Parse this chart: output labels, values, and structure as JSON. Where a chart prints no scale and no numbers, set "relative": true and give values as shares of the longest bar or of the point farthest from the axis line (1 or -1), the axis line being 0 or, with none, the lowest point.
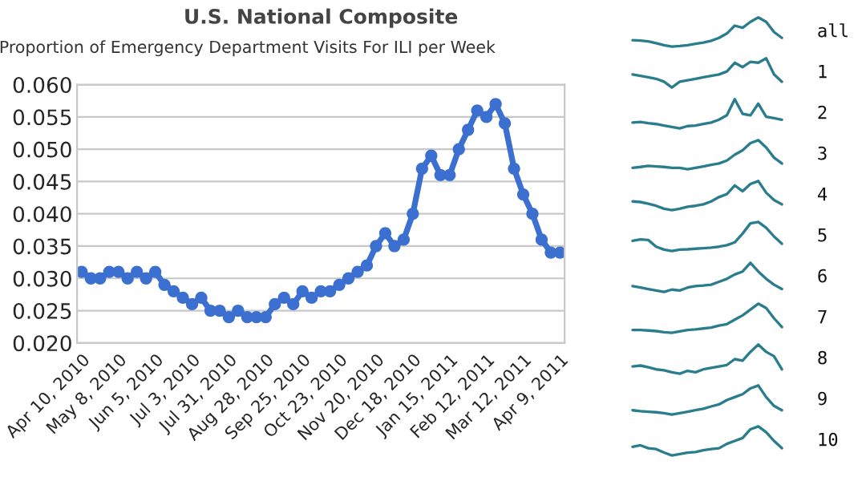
{
  "chart_data": [
    {
      "type": "line",
      "title": "U.S. National Composite",
      "subtitle": "Proportion of Emergency Department Visits For ILI per Week",
      "categories": [
        "Apr 10, 2010",
        null,
        null,
        null,
        "May 8, 2010",
        null,
        null,
        null,
        "Jun 5, 2010",
        null,
        null,
        null,
        "Jul 3, 2010",
        null,
        null,
        null,
        "Jul 31, 2010",
        null,
        null,
        null,
        "Aug 28, 2010",
        null,
        null,
        null,
        "Sep 25, 2010",
        null,
        null,
        null,
        "Oct 23, 2010",
        null,
        null,
        null,
        "Nov 20, 2010",
        null,
        null,
        null,
        "Dec 18, 2010",
        null,
        null,
        null,
        "Jan 15, 2011",
        null,
        null,
        null,
        "Feb 12, 2011",
        null,
        null,
        null,
        "Mar 12, 2011",
        null,
        null,
        null,
        "Apr 9, 2011"
      ],
      "values": [
        0.031,
        0.03,
        0.03,
        0.031,
        0.031,
        0.03,
        0.031,
        0.03,
        0.031,
        0.029,
        0.028,
        0.027,
        0.026,
        0.027,
        0.025,
        0.025,
        0.024,
        0.025,
        0.024,
        0.024,
        0.024,
        0.026,
        0.027,
        0.026,
        0.028,
        0.027,
        0.028,
        0.028,
        0.029,
        0.03,
        0.031,
        0.032,
        0.035,
        0.037,
        0.035,
        0.036,
        0.04,
        0.047,
        0.049,
        0.046,
        0.046,
        0.05,
        0.053,
        0.056,
        0.055,
        0.057,
        0.054,
        0.047,
        0.043,
        0.04,
        0.036,
        0.034,
        0.034
      ],
      "color": "#3b6fd0",
      "marker": "circle",
      "grid": "y",
      "ylim": [
        0.02,
        0.06
      ],
      "yticks": [
        {
          "value": 0.02,
          "label": "0.020"
        },
        {
          "value": 0.025,
          "label": "0.025"
        },
        {
          "value": 0.03,
          "label": "0.030"
        },
        {
          "value": 0.035,
          "label": "0.035"
        },
        {
          "value": 0.04,
          "label": "0.040"
        },
        {
          "value": 0.045,
          "label": "0.045"
        },
        {
          "value": 0.05,
          "label": "0.050"
        },
        {
          "value": 0.055,
          "label": "0.055"
        },
        {
          "value": 0.06,
          "label": "0.060"
        }
      ]
    },
    {
      "type": "line",
      "ylabel": "all",
      "relative": true,
      "color": "#2a7d8c",
      "categories": [
        null,
        null,
        null,
        null,
        null,
        null,
        null,
        null,
        null,
        null,
        null,
        null,
        null,
        null,
        null,
        null,
        null,
        null,
        null,
        null
      ],
      "values": [
        0.22,
        0.21,
        0.18,
        0.12,
        0.05,
        0.0,
        0.02,
        0.05,
        0.1,
        0.14,
        0.2,
        0.3,
        0.45,
        0.72,
        0.65,
        0.85,
        1.0,
        0.85,
        0.5,
        0.3
      ]
    },
    {
      "type": "line",
      "ylabel": "1",
      "relative": true,
      "color": "#2a7d8c",
      "categories": [
        null,
        null,
        null,
        null,
        null,
        null,
        null,
        null,
        null,
        null,
        null,
        null,
        null,
        null,
        null,
        null,
        null,
        null,
        null,
        null
      ],
      "values": [
        0.45,
        0.4,
        0.35,
        0.3,
        0.2,
        0.0,
        0.2,
        0.25,
        0.3,
        0.35,
        0.4,
        0.45,
        0.55,
        0.85,
        0.7,
        0.88,
        0.85,
        1.0,
        0.45,
        0.2
      ]
    },
    {
      "type": "line",
      "ylabel": "2",
      "relative": true,
      "color": "#2a7d8c",
      "categories": [
        null,
        null,
        null,
        null,
        null,
        null,
        null,
        null,
        null,
        null,
        null,
        null,
        null,
        null,
        null,
        null,
        null,
        null,
        null,
        null
      ],
      "values": [
        0.2,
        0.22,
        0.18,
        0.15,
        0.1,
        0.05,
        0.0,
        0.08,
        0.1,
        0.15,
        0.2,
        0.3,
        0.45,
        1.0,
        0.5,
        0.45,
        0.85,
        0.4,
        0.35,
        0.3
      ]
    },
    {
      "type": "line",
      "ylabel": "3",
      "relative": true,
      "color": "#2a7d8c",
      "categories": [
        null,
        null,
        null,
        null,
        null,
        null,
        null,
        null,
        null,
        null,
        null,
        null,
        null,
        null,
        null,
        null,
        null,
        null,
        null,
        null
      ],
      "values": [
        0.05,
        0.08,
        0.12,
        0.1,
        0.08,
        0.05,
        0.05,
        0.0,
        0.05,
        0.1,
        0.15,
        0.2,
        0.3,
        0.5,
        0.65,
        0.9,
        1.0,
        0.75,
        0.4,
        0.2
      ]
    },
    {
      "type": "line",
      "ylabel": "4",
      "relative": true,
      "color": "#2a7d8c",
      "categories": [
        null,
        null,
        null,
        null,
        null,
        null,
        null,
        null,
        null,
        null,
        null,
        null,
        null,
        null,
        null,
        null,
        null,
        null,
        null,
        null
      ],
      "values": [
        0.3,
        0.28,
        0.22,
        0.15,
        0.05,
        0.0,
        0.05,
        0.12,
        0.15,
        0.2,
        0.3,
        0.45,
        0.55,
        0.85,
        0.65,
        0.9,
        1.0,
        0.6,
        0.35,
        0.2
      ]
    },
    {
      "type": "line",
      "ylabel": "5",
      "relative": true,
      "color": "#2a7d8c",
      "categories": [
        null,
        null,
        null,
        null,
        null,
        null,
        null,
        null,
        null,
        null,
        null,
        null,
        null,
        null,
        null,
        null,
        null,
        null,
        null,
        null
      ],
      "values": [
        0.35,
        0.4,
        0.38,
        0.15,
        0.05,
        0.0,
        0.05,
        0.06,
        0.08,
        0.1,
        0.12,
        0.15,
        0.2,
        0.3,
        0.6,
        0.95,
        1.0,
        0.8,
        0.5,
        0.25
      ]
    },
    {
      "type": "line",
      "ylabel": "6",
      "relative": true,
      "color": "#2a7d8c",
      "categories": [
        null,
        null,
        null,
        null,
        null,
        null,
        null,
        null,
        null,
        null,
        null,
        null,
        null,
        null,
        null,
        null,
        null,
        null,
        null,
        null
      ],
      "values": [
        0.2,
        0.15,
        0.1,
        0.05,
        0.0,
        0.08,
        0.05,
        0.15,
        0.2,
        0.22,
        0.25,
        0.35,
        0.45,
        0.6,
        0.7,
        1.0,
        0.7,
        0.45,
        0.25,
        0.1
      ]
    },
    {
      "type": "line",
      "ylabel": "7",
      "relative": true,
      "color": "#2a7d8c",
      "categories": [
        null,
        null,
        null,
        null,
        null,
        null,
        null,
        null,
        null,
        null,
        null,
        null,
        null,
        null,
        null,
        null,
        null,
        null,
        null,
        null
      ],
      "values": [
        0.1,
        0.1,
        0.08,
        0.06,
        0.02,
        0.0,
        0.05,
        0.1,
        0.12,
        0.15,
        0.18,
        0.25,
        0.3,
        0.45,
        0.6,
        0.8,
        1.0,
        0.85,
        0.5,
        0.2
      ]
    },
    {
      "type": "line",
      "ylabel": "8",
      "relative": true,
      "color": "#2a7d8c",
      "categories": [
        null,
        null,
        null,
        null,
        null,
        null,
        null,
        null,
        null,
        null,
        null,
        null,
        null,
        null,
        null,
        null,
        null,
        null,
        null,
        null
      ],
      "values": [
        0.25,
        0.28,
        0.22,
        0.15,
        0.12,
        0.05,
        0.0,
        0.1,
        0.05,
        0.15,
        0.2,
        0.25,
        0.3,
        0.5,
        0.45,
        0.75,
        1.0,
        0.75,
        0.6,
        0.15
      ]
    },
    {
      "type": "line",
      "ylabel": "9",
      "relative": true,
      "color": "#2a7d8c",
      "categories": [
        null,
        null,
        null,
        null,
        null,
        null,
        null,
        null,
        null,
        null,
        null,
        null,
        null,
        null,
        null,
        null,
        null,
        null,
        null,
        null
      ],
      "values": [
        0.15,
        0.12,
        0.1,
        0.08,
        0.05,
        0.0,
        0.05,
        0.1,
        0.15,
        0.2,
        0.28,
        0.35,
        0.5,
        0.6,
        0.7,
        0.9,
        1.0,
        0.6,
        0.3,
        0.15
      ]
    },
    {
      "type": "line",
      "ylabel": "10",
      "relative": true,
      "color": "#2a7d8c",
      "categories": [
        null,
        null,
        null,
        null,
        null,
        null,
        null,
        null,
        null,
        null,
        null,
        null,
        null,
        null,
        null,
        null,
        null,
        null,
        null,
        null
      ],
      "values": [
        0.3,
        0.35,
        0.25,
        0.22,
        0.1,
        0.0,
        0.05,
        0.1,
        0.12,
        0.18,
        0.22,
        0.25,
        0.4,
        0.5,
        0.6,
        0.9,
        1.0,
        0.8,
        0.5,
        0.25
      ]
    }
  ]
}
